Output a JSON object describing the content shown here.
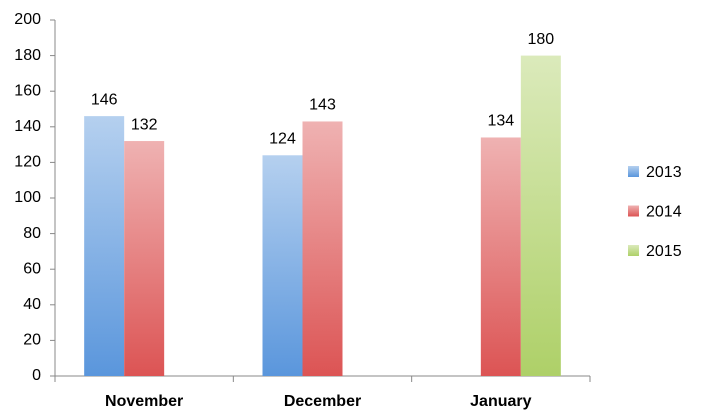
{
  "chart_data": {
    "type": "bar",
    "categories": [
      "November",
      "December",
      "January"
    ],
    "series": [
      {
        "name": "2013",
        "color": "#5a96dc",
        "values": [
          146,
          124,
          null
        ]
      },
      {
        "name": "2014",
        "color": "#dc5454",
        "values": [
          132,
          143,
          134
        ]
      },
      {
        "name": "2015",
        "color": "#aed068",
        "values": [
          null,
          null,
          180
        ]
      }
    ],
    "ylim": [
      0,
      200
    ],
    "yticks": [
      0,
      20,
      40,
      60,
      80,
      100,
      120,
      140,
      160,
      180,
      200
    ],
    "grid": false,
    "legend": "right"
  }
}
